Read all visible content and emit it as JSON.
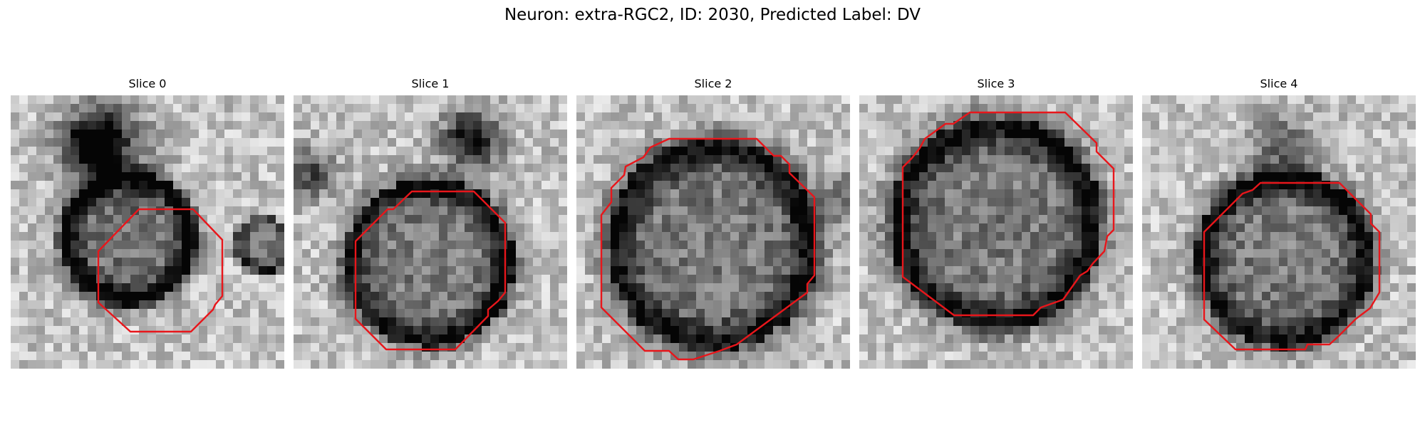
{
  "figure": {
    "title": "Neuron: extra-RGC2, ID: 2030, Predicted Label: DV",
    "contour_color": "#e8161b"
  },
  "panels": [
    {
      "title": "Slice 0"
    },
    {
      "title": "Slice 1"
    },
    {
      "title": "Slice 2"
    },
    {
      "title": "Slice 3"
    },
    {
      "title": "Slice 4"
    }
  ]
}
